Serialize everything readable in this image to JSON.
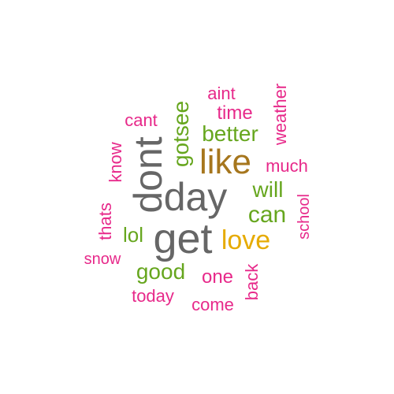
{
  "colors": {
    "gray": "#666666",
    "brown": "#A6761D",
    "green": "#66A61E",
    "orange": "#E6AB02",
    "magenta": "#E7298A"
  },
  "words": [
    {
      "text": "dont",
      "color": "gray",
      "vertical": true
    },
    {
      "text": "day",
      "color": "gray",
      "vertical": false
    },
    {
      "text": "get",
      "color": "gray",
      "vertical": false
    },
    {
      "text": "like",
      "color": "brown",
      "vertical": false
    },
    {
      "text": "love",
      "color": "orange",
      "vertical": false
    },
    {
      "text": "better",
      "color": "green",
      "vertical": false
    },
    {
      "text": "gotsee",
      "color": "green",
      "vertical": true
    },
    {
      "text": "will",
      "color": "green",
      "vertical": false
    },
    {
      "text": "can",
      "color": "green",
      "vertical": false
    },
    {
      "text": "lol",
      "color": "green",
      "vertical": false
    },
    {
      "text": "good",
      "color": "green",
      "vertical": false
    },
    {
      "text": "aint",
      "color": "magenta",
      "vertical": false
    },
    {
      "text": "time",
      "color": "magenta",
      "vertical": false
    },
    {
      "text": "weather",
      "color": "magenta",
      "vertical": true
    },
    {
      "text": "cant",
      "color": "magenta",
      "vertical": false
    },
    {
      "text": "much",
      "color": "magenta",
      "vertical": false
    },
    {
      "text": "know",
      "color": "magenta",
      "vertical": true
    },
    {
      "text": "thats",
      "color": "magenta",
      "vertical": true
    },
    {
      "text": "school",
      "color": "magenta",
      "vertical": true
    },
    {
      "text": "snow",
      "color": "magenta",
      "vertical": false
    },
    {
      "text": "one",
      "color": "magenta",
      "vertical": false
    },
    {
      "text": "back",
      "color": "magenta",
      "vertical": true
    },
    {
      "text": "today",
      "color": "magenta",
      "vertical": false
    },
    {
      "text": "come",
      "color": "magenta",
      "vertical": false
    }
  ]
}
